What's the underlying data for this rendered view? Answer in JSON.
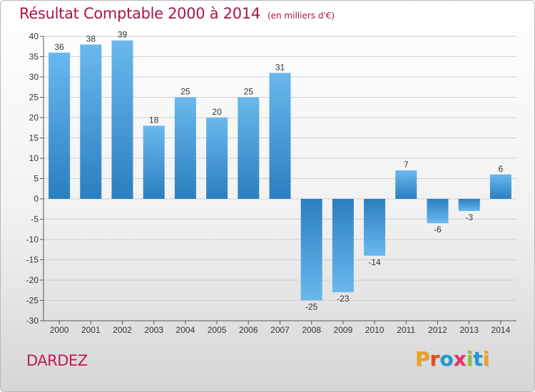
{
  "header": {
    "title": "Résultat Comptable 2000 à 2014",
    "subtitle": "(en milliers d'€)"
  },
  "footer": {
    "commune": "DARDEZ",
    "logo_text": "Proxiti",
    "logo_colors": [
      "#f0a020",
      "#e84a1a",
      "#1f9ad6",
      "#e83070",
      "#8cc43c",
      "#1f9ad6",
      "#f0a020"
    ]
  },
  "colors": {
    "bar_light": "#6ab8ee",
    "bar_dark": "#2a7fc0",
    "grid": "#d0d0d0",
    "axis": "#555555",
    "title": "#a8174a"
  },
  "chart_data": {
    "type": "bar",
    "title": "Résultat Comptable 2000 à 2014",
    "subtitle": "(en milliers d'€)",
    "categories": [
      "2000",
      "2001",
      "2002",
      "2003",
      "2004",
      "2005",
      "2006",
      "2007",
      "2008",
      "2009",
      "2010",
      "2011",
      "2012",
      "2013",
      "2014"
    ],
    "values": [
      36,
      38,
      39,
      18,
      25,
      20,
      25,
      31,
      -25,
      -23,
      -14,
      7,
      -6,
      -3,
      6
    ],
    "ylim": [
      -30,
      40
    ],
    "yticks": [
      40,
      35,
      30,
      25,
      20,
      15,
      10,
      5,
      0,
      -5,
      -10,
      -15,
      -20,
      -25,
      -30
    ],
    "grid": "horizontal",
    "xlabel": "",
    "ylabel": ""
  }
}
